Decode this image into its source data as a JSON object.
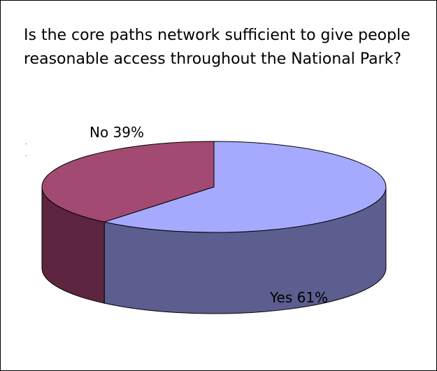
{
  "question": "Is the core paths network sufficient to give people reasonable access throughout the National Park?",
  "chart_data": {
    "type": "pie",
    "style": "3d",
    "slices": [
      {
        "label": "Yes 61%",
        "category": "Yes",
        "value": 61,
        "color": "#a6aaff",
        "side_color": "#5c5e8f"
      },
      {
        "label": "No 39%",
        "category": "No",
        "value": 39,
        "color": "#a34a72",
        "side_color": "#5d2540"
      }
    ]
  }
}
